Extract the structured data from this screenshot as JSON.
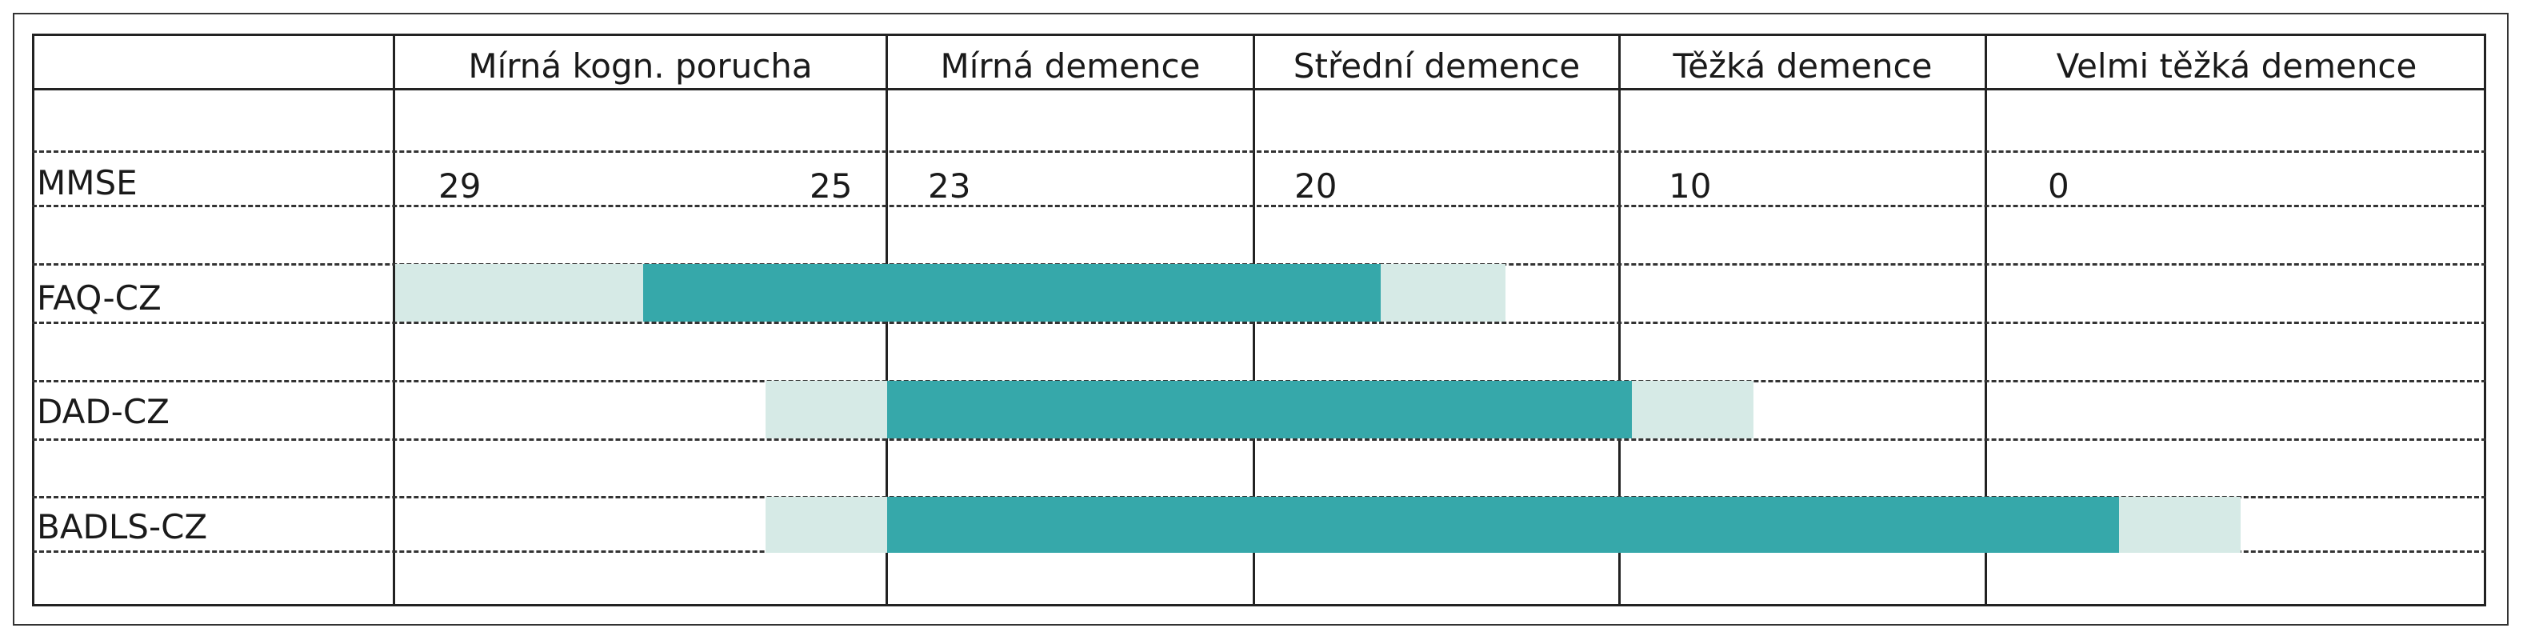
{
  "columns": [
    "Mírná kogn. porucha",
    "Mírná demence",
    "Střední demence",
    "Těžká demence",
    "Velmi těžká demence"
  ],
  "rows": {
    "mmse": "MMSE",
    "faq": "FAQ-CZ",
    "dad": "DAD-CZ",
    "badls": "BADLS-CZ"
  },
  "mmse_values": [
    "29",
    "25",
    "23",
    "20",
    "10",
    "0"
  ],
  "colors": {
    "core": "#36a8aa",
    "extension": "#d6eae6"
  },
  "bars": [
    {
      "scale": "FAQ-CZ",
      "core_range": "mild cognitive impairment – moderate dementia",
      "extended": true
    },
    {
      "scale": "DAD-CZ",
      "core_range": "mild dementia – severe dementia",
      "extended": true
    },
    {
      "scale": "BADLS-CZ",
      "core_range": "mild dementia – very severe dementia",
      "extended": true
    }
  ]
}
